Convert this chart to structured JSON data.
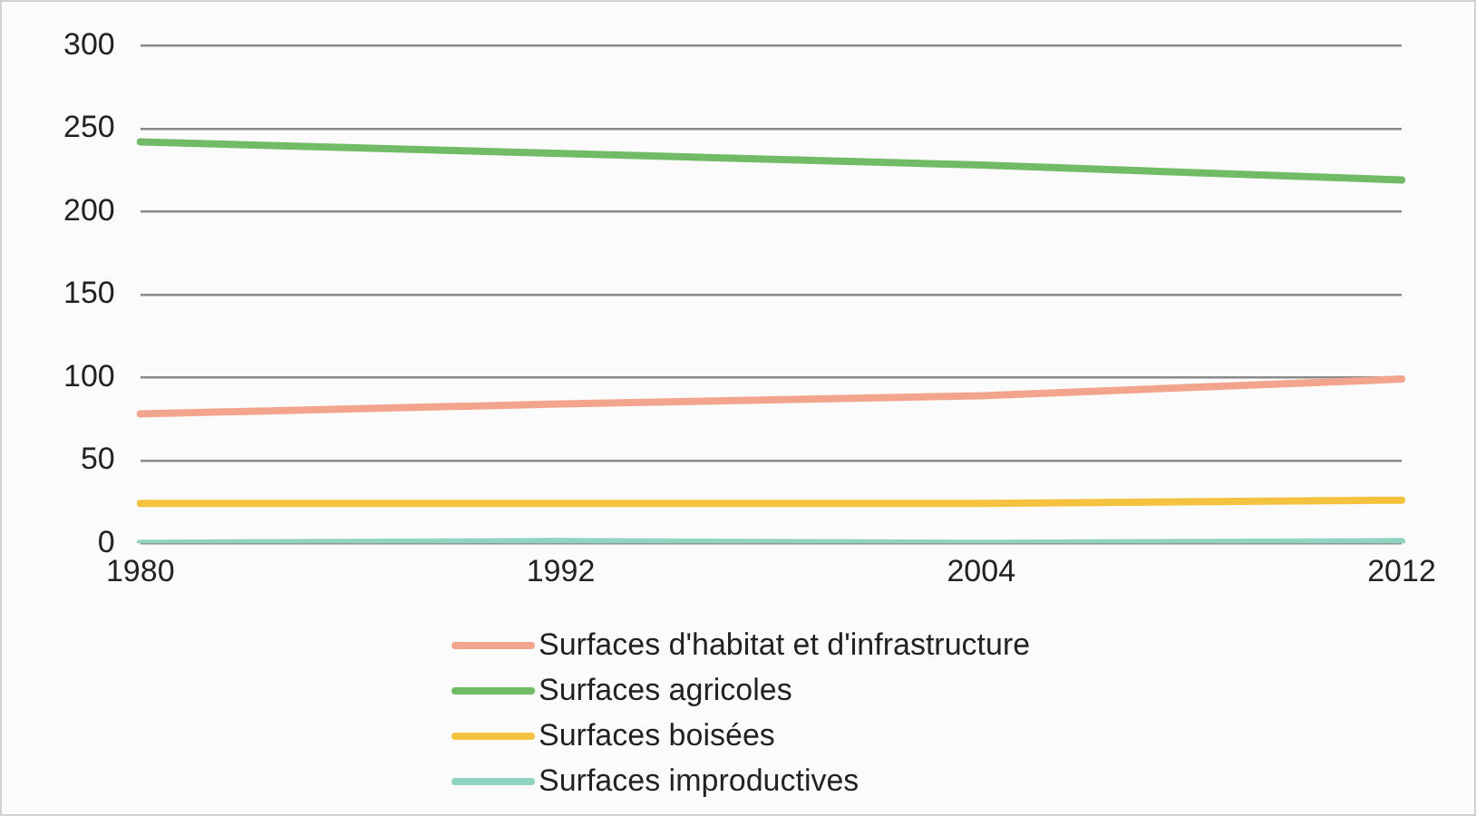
{
  "chart_data": {
    "type": "line",
    "categories": [
      "1980",
      "1992",
      "2004",
      "2012"
    ],
    "series": [
      {
        "name": "Surfaces d'habitat et d'infrastructure",
        "color": "#f2a58c",
        "values": [
          78,
          84,
          89,
          99
        ]
      },
      {
        "name": "Surfaces agricoles",
        "color": "#72bb66",
        "values": [
          242,
          235,
          228,
          219
        ]
      },
      {
        "name": "Surfaces boisées",
        "color": "#f4c23e",
        "values": [
          24,
          24,
          24,
          26
        ]
      },
      {
        "name": "Surfaces improductives",
        "color": "#8fd3c0",
        "values": [
          0,
          1,
          0,
          1
        ]
      }
    ],
    "ylim": [
      0,
      300
    ],
    "yticks": [
      0,
      50,
      100,
      150,
      200,
      250,
      300
    ],
    "grid": "y",
    "legend": "bottom",
    "marker": "none",
    "line_style": "solid"
  }
}
